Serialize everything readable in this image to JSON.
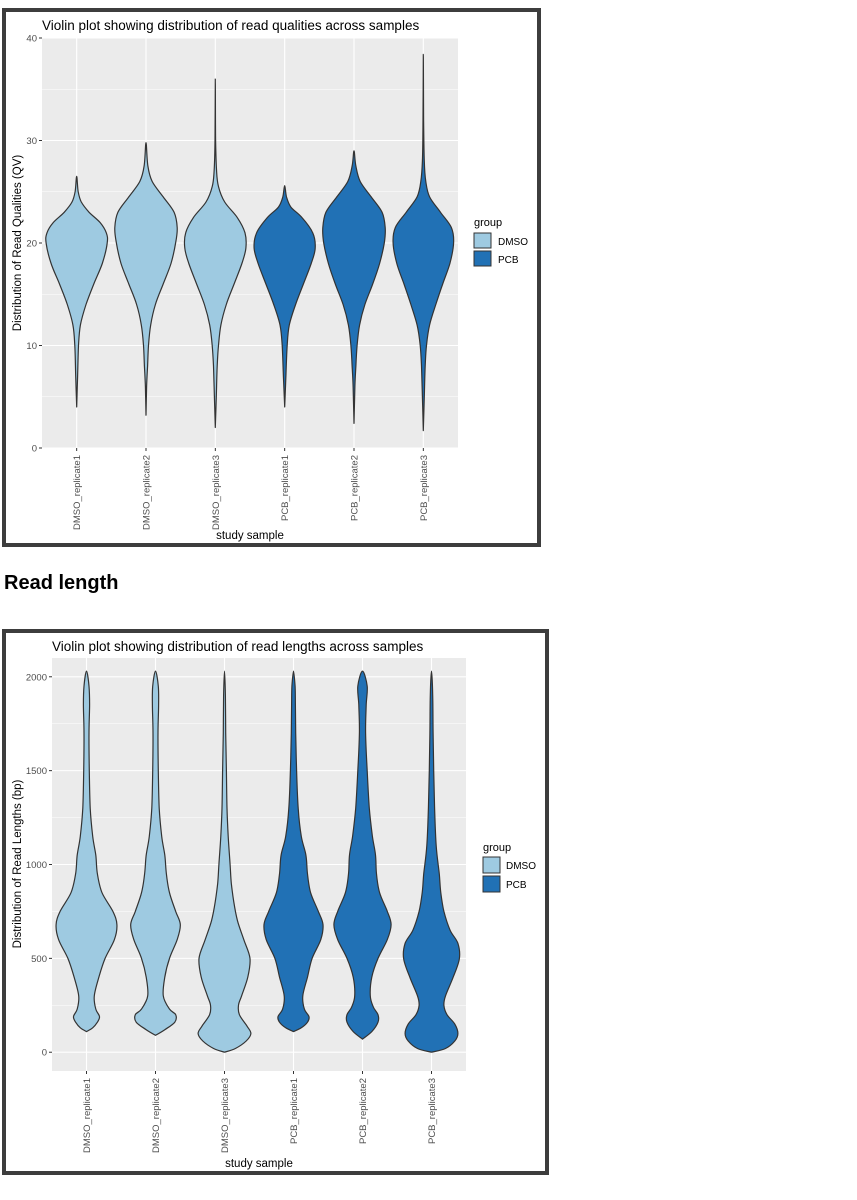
{
  "colors": {
    "panel": "#ebebeb",
    "grid": "#ffffff",
    "dmso": "#9ecae1",
    "pcb": "#2171b5",
    "outline": "#333333"
  },
  "section_heading": "Read length",
  "chart_data": [
    {
      "type": "violin",
      "title": "Violin plot showing distribution of read qualities across samples",
      "xlabel": "study sample",
      "ylabel": "Distribution of Read Qualities (QV)",
      "ylim": [
        0,
        40
      ],
      "yticks": [
        "0",
        "10",
        "20",
        "30",
        "40"
      ],
      "grid": true,
      "legend": {
        "title": "group",
        "position": "right",
        "entries": [
          "DMSO",
          "PCB"
        ]
      },
      "categories": [
        "DMSO_replicate1",
        "DMSO_replicate2",
        "DMSO_replicate3",
        "PCB_replicate1",
        "PCB_replicate2",
        "PCB_replicate3"
      ],
      "groups": [
        "DMSO",
        "DMSO",
        "DMSO",
        "PCB",
        "PCB",
        "PCB"
      ],
      "ranges": [
        [
          4,
          26.5
        ],
        [
          3.2,
          29.8
        ],
        [
          2,
          36
        ],
        [
          4,
          25.6
        ],
        [
          2.4,
          29
        ],
        [
          1.7,
          38.4
        ]
      ],
      "density": [
        [
          [
            4,
            0
          ],
          [
            7,
            0.03
          ],
          [
            10,
            0.06
          ],
          [
            12,
            0.12
          ],
          [
            14,
            0.3
          ],
          [
            16,
            0.55
          ],
          [
            18,
            0.82
          ],
          [
            20,
            0.98
          ],
          [
            21,
            0.95
          ],
          [
            22,
            0.75
          ],
          [
            23,
            0.4
          ],
          [
            24,
            0.15
          ],
          [
            25,
            0.05
          ],
          [
            26.5,
            0
          ]
        ],
        [
          [
            3.2,
            0
          ],
          [
            6,
            0.02
          ],
          [
            8,
            0.05
          ],
          [
            10,
            0.08
          ],
          [
            12,
            0.15
          ],
          [
            14,
            0.3
          ],
          [
            16,
            0.55
          ],
          [
            18,
            0.8
          ],
          [
            20,
            0.95
          ],
          [
            21.5,
            1.0
          ],
          [
            23,
            0.9
          ],
          [
            24.5,
            0.55
          ],
          [
            26,
            0.2
          ],
          [
            27.5,
            0.06
          ],
          [
            29.8,
            0
          ]
        ],
        [
          [
            2,
            0
          ],
          [
            5,
            0.03
          ],
          [
            8,
            0.06
          ],
          [
            10,
            0.1
          ],
          [
            12,
            0.18
          ],
          [
            14,
            0.35
          ],
          [
            16,
            0.6
          ],
          [
            18,
            0.85
          ],
          [
            19.5,
            0.98
          ],
          [
            21,
            0.95
          ],
          [
            22.5,
            0.7
          ],
          [
            24,
            0.3
          ],
          [
            25.5,
            0.1
          ],
          [
            27,
            0.04
          ],
          [
            30,
            0.01
          ],
          [
            36,
            0
          ]
        ],
        [
          [
            4,
            0
          ],
          [
            7,
            0.04
          ],
          [
            10,
            0.08
          ],
          [
            12,
            0.15
          ],
          [
            14,
            0.35
          ],
          [
            16,
            0.6
          ],
          [
            18,
            0.85
          ],
          [
            19.5,
            0.98
          ],
          [
            21,
            0.9
          ],
          [
            22.5,
            0.55
          ],
          [
            23.5,
            0.2
          ],
          [
            24.5,
            0.06
          ],
          [
            25.6,
            0
          ]
        ],
        [
          [
            2.4,
            0
          ],
          [
            6,
            0.03
          ],
          [
            8,
            0.06
          ],
          [
            10,
            0.1
          ],
          [
            12,
            0.18
          ],
          [
            14,
            0.35
          ],
          [
            16,
            0.6
          ],
          [
            18,
            0.82
          ],
          [
            20,
            0.97
          ],
          [
            21.5,
            1.0
          ],
          [
            23,
            0.9
          ],
          [
            24.5,
            0.55
          ],
          [
            26,
            0.2
          ],
          [
            27.5,
            0.06
          ],
          [
            29,
            0
          ]
        ],
        [
          [
            1.7,
            0
          ],
          [
            5,
            0.03
          ],
          [
            8,
            0.06
          ],
          [
            10,
            0.1
          ],
          [
            12,
            0.2
          ],
          [
            14,
            0.4
          ],
          [
            16,
            0.62
          ],
          [
            18,
            0.85
          ],
          [
            20,
            0.97
          ],
          [
            21.5,
            0.9
          ],
          [
            23,
            0.55
          ],
          [
            24.5,
            0.2
          ],
          [
            26,
            0.08
          ],
          [
            28,
            0.03
          ],
          [
            32,
            0.01
          ],
          [
            38.4,
            0
          ]
        ]
      ]
    },
    {
      "type": "violin",
      "title": "Violin plot showing distribution of read lengths across samples",
      "xlabel": "study sample",
      "ylabel": "Distribution of Read Lengths (bp)",
      "ylim": [
        -100,
        2100
      ],
      "yticks": [
        "0",
        "500",
        "1000",
        "1500",
        "2000"
      ],
      "grid": true,
      "legend": {
        "title": "group",
        "position": "right",
        "entries": [
          "DMSO",
          "PCB"
        ]
      },
      "categories": [
        "DMSO_replicate1",
        "DMSO_replicate2",
        "DMSO_replicate3",
        "PCB_replicate1",
        "PCB_replicate2",
        "PCB_replicate3"
      ],
      "groups": [
        "DMSO",
        "DMSO",
        "DMSO",
        "PCB",
        "PCB",
        "PCB"
      ],
      "ranges": [
        [
          110,
          2030
        ],
        [
          90,
          2030
        ],
        [
          0,
          2030
        ],
        [
          110,
          2030
        ],
        [
          70,
          2030
        ],
        [
          0,
          2030
        ]
      ],
      "density": [
        [
          [
            110,
            0
          ],
          [
            130,
            0.2
          ],
          [
            160,
            0.35
          ],
          [
            190,
            0.42
          ],
          [
            230,
            0.3
          ],
          [
            300,
            0.25
          ],
          [
            400,
            0.4
          ],
          [
            500,
            0.6
          ],
          [
            600,
            0.9
          ],
          [
            680,
            0.98
          ],
          [
            750,
            0.85
          ],
          [
            850,
            0.5
          ],
          [
            950,
            0.35
          ],
          [
            1050,
            0.3
          ],
          [
            1150,
            0.2
          ],
          [
            1300,
            0.12
          ],
          [
            1500,
            0.09
          ],
          [
            1700,
            0.08
          ],
          [
            1850,
            0.1
          ],
          [
            1950,
            0.08
          ],
          [
            2030,
            0
          ]
        ],
        [
          [
            90,
            0
          ],
          [
            120,
            0.3
          ],
          [
            160,
            0.62
          ],
          [
            200,
            0.65
          ],
          [
            230,
            0.45
          ],
          [
            300,
            0.25
          ],
          [
            400,
            0.3
          ],
          [
            500,
            0.45
          ],
          [
            600,
            0.7
          ],
          [
            680,
            0.8
          ],
          [
            750,
            0.65
          ],
          [
            850,
            0.45
          ],
          [
            950,
            0.35
          ],
          [
            1050,
            0.3
          ],
          [
            1150,
            0.2
          ],
          [
            1300,
            0.12
          ],
          [
            1500,
            0.09
          ],
          [
            1700,
            0.08
          ],
          [
            1850,
            0.1
          ],
          [
            1950,
            0.09
          ],
          [
            2030,
            0
          ]
        ],
        [
          [
            0,
            0
          ],
          [
            20,
            0.35
          ],
          [
            60,
            0.7
          ],
          [
            100,
            0.85
          ],
          [
            140,
            0.72
          ],
          [
            200,
            0.48
          ],
          [
            250,
            0.45
          ],
          [
            300,
            0.55
          ],
          [
            400,
            0.75
          ],
          [
            500,
            0.82
          ],
          [
            600,
            0.62
          ],
          [
            700,
            0.42
          ],
          [
            800,
            0.3
          ],
          [
            900,
            0.22
          ],
          [
            1000,
            0.18
          ],
          [
            1150,
            0.12
          ],
          [
            1300,
            0.08
          ],
          [
            1500,
            0.06
          ],
          [
            1700,
            0.04
          ],
          [
            1900,
            0.03
          ],
          [
            2030,
            0
          ]
        ],
        [
          [
            110,
            0
          ],
          [
            130,
            0.25
          ],
          [
            160,
            0.45
          ],
          [
            190,
            0.5
          ],
          [
            230,
            0.35
          ],
          [
            300,
            0.3
          ],
          [
            400,
            0.45
          ],
          [
            500,
            0.6
          ],
          [
            600,
            0.88
          ],
          [
            680,
            0.95
          ],
          [
            750,
            0.8
          ],
          [
            850,
            0.55
          ],
          [
            950,
            0.45
          ],
          [
            1050,
            0.4
          ],
          [
            1150,
            0.25
          ],
          [
            1300,
            0.15
          ],
          [
            1500,
            0.1
          ],
          [
            1700,
            0.07
          ],
          [
            1850,
            0.06
          ],
          [
            1950,
            0.05
          ],
          [
            2030,
            0
          ]
        ],
        [
          [
            70,
            0
          ],
          [
            110,
            0.3
          ],
          [
            160,
            0.5
          ],
          [
            200,
            0.5
          ],
          [
            240,
            0.35
          ],
          [
            300,
            0.25
          ],
          [
            400,
            0.3
          ],
          [
            500,
            0.5
          ],
          [
            600,
            0.8
          ],
          [
            680,
            0.92
          ],
          [
            750,
            0.8
          ],
          [
            850,
            0.55
          ],
          [
            950,
            0.45
          ],
          [
            1050,
            0.42
          ],
          [
            1150,
            0.32
          ],
          [
            1300,
            0.22
          ],
          [
            1500,
            0.15
          ],
          [
            1700,
            0.1
          ],
          [
            1850,
            0.12
          ],
          [
            1950,
            0.15
          ],
          [
            2030,
            0
          ]
        ],
        [
          [
            0,
            0
          ],
          [
            20,
            0.45
          ],
          [
            60,
            0.75
          ],
          [
            100,
            0.85
          ],
          [
            150,
            0.75
          ],
          [
            200,
            0.5
          ],
          [
            250,
            0.4
          ],
          [
            300,
            0.45
          ],
          [
            400,
            0.7
          ],
          [
            500,
            0.9
          ],
          [
            580,
            0.85
          ],
          [
            650,
            0.6
          ],
          [
            750,
            0.4
          ],
          [
            850,
            0.3
          ],
          [
            950,
            0.25
          ],
          [
            1100,
            0.15
          ],
          [
            1300,
            0.1
          ],
          [
            1500,
            0.07
          ],
          [
            1700,
            0.05
          ],
          [
            1900,
            0.04
          ],
          [
            2030,
            0
          ]
        ]
      ]
    }
  ]
}
